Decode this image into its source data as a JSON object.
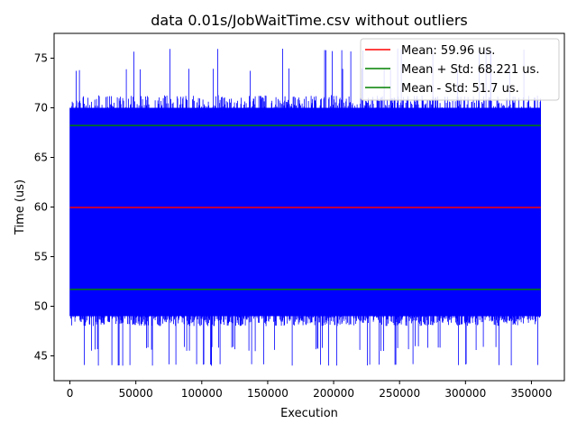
{
  "chart_data": {
    "type": "line",
    "title": "data 0.01s/JobWaitTime.csv without outliers",
    "xlabel": "Execution",
    "ylabel": "Time (us)",
    "xlim": [
      -12000,
      375000
    ],
    "ylim": [
      42.5,
      77.5
    ],
    "xticks": [
      0,
      50000,
      100000,
      150000,
      200000,
      250000,
      300000,
      350000
    ],
    "yticks": [
      45,
      50,
      55,
      60,
      65,
      70,
      75
    ],
    "grid": false,
    "legend_position": "top-right",
    "data_range": {
      "x_min": 0,
      "x_max": 357000,
      "y_min": 44,
      "y_max": 76,
      "typical_high": 70,
      "typical_low": 49
    },
    "series": [
      {
        "name": "",
        "color": "#0000ff",
        "kind": "raw-measurements"
      },
      {
        "name": "Mean: 59.96 us.",
        "color": "#ff0000",
        "value": 59.96
      },
      {
        "name": "Mean + Std:  68.221 us.",
        "color": "#008000",
        "value": 68.221
      },
      {
        "name": "Mean - Std:  51.7 us.",
        "color": "#008000",
        "value": 51.7
      }
    ]
  }
}
